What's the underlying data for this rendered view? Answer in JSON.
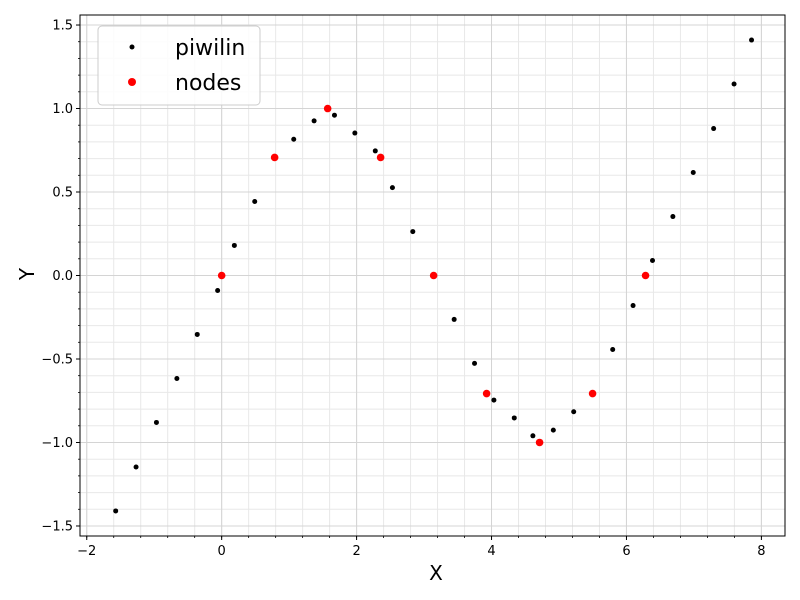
{
  "chart_data": {
    "type": "scatter",
    "title": "",
    "xlabel": "X",
    "ylabel": "Y",
    "xlim": [
      -2.1,
      8.35
    ],
    "ylim": [
      -1.56,
      1.56
    ],
    "xticks": [
      -2,
      0,
      2,
      4,
      6,
      8
    ],
    "yticks": [
      -1.5,
      -1.0,
      -0.5,
      0.0,
      0.5,
      1.0,
      1.5
    ],
    "xticks_labels": [
      "−2",
      "0",
      "2",
      "4",
      "6",
      "8"
    ],
    "yticks_labels": [
      "−1.5",
      "−1.0",
      "−0.5",
      "0.0",
      "0.5",
      "1.0",
      "1.5"
    ],
    "x_minor_step": 0.4,
    "y_minor_step": 0.1,
    "grid": true,
    "legend_position": "upper-left",
    "series": [
      {
        "name": "piwilin",
        "color": "#000000",
        "points": [
          [
            -1.571,
            -1.41
          ],
          [
            -1.269,
            -1.147
          ],
          [
            -0.967,
            -0.88
          ],
          [
            -0.664,
            -0.617
          ],
          [
            -0.362,
            -0.353
          ],
          [
            -0.06,
            -0.09
          ],
          [
            0.188,
            0.18
          ],
          [
            0.49,
            0.443
          ],
          [
            1.068,
            0.816
          ],
          [
            1.37,
            0.926
          ],
          [
            1.672,
            0.96
          ],
          [
            1.974,
            0.853
          ],
          [
            2.277,
            0.746
          ],
          [
            2.531,
            0.526
          ],
          [
            2.833,
            0.263
          ],
          [
            3.446,
            -0.263
          ],
          [
            3.748,
            -0.526
          ],
          [
            4.035,
            -0.746
          ],
          [
            4.337,
            -0.853
          ],
          [
            4.613,
            -0.96
          ],
          [
            4.916,
            -0.926
          ],
          [
            5.218,
            -0.816
          ],
          [
            5.796,
            -0.443
          ],
          [
            6.098,
            -0.18
          ],
          [
            6.386,
            0.09
          ],
          [
            6.688,
            0.353
          ],
          [
            6.99,
            0.617
          ],
          [
            7.292,
            0.88
          ],
          [
            7.595,
            1.147
          ],
          [
            7.854,
            1.41
          ]
        ]
      },
      {
        "name": "nodes",
        "color": "#ff0000",
        "points": [
          [
            0,
            0
          ],
          [
            0.785,
            0.707
          ],
          [
            1.571,
            1.0
          ],
          [
            2.356,
            0.707
          ],
          [
            3.142,
            0
          ],
          [
            3.927,
            -0.707
          ],
          [
            4.712,
            -1.0
          ],
          [
            5.498,
            -0.707
          ],
          [
            6.283,
            0
          ]
        ]
      }
    ]
  }
}
